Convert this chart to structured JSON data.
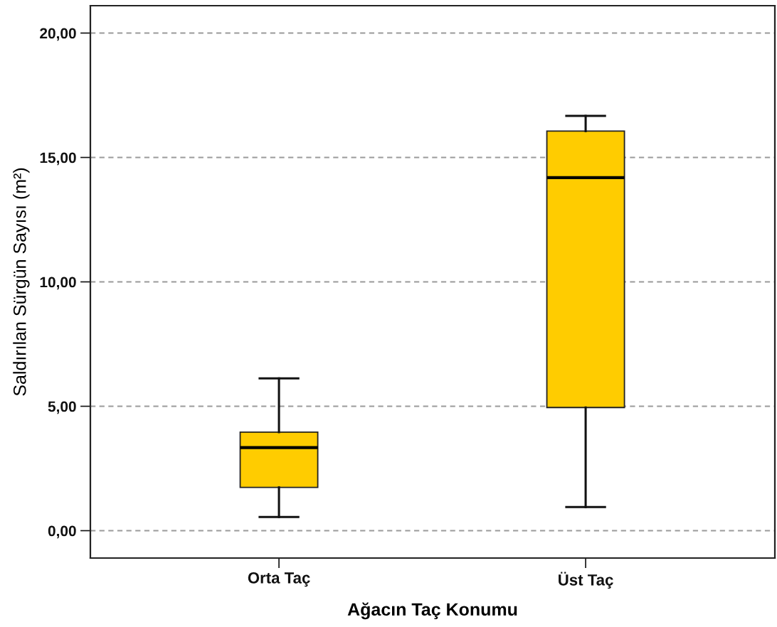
{
  "chart_data": {
    "type": "box",
    "xlabel": "Ağacın Taç Konumu",
    "ylabel": "Saldırılan Sürgün Sayısı (m²)",
    "categories": [
      "Orta Taç",
      "Üst Taç"
    ],
    "series": [
      {
        "color": "#ffcc00",
        "boxes": [
          {
            "low": 0.55,
            "q1": 1.74,
            "median": 3.34,
            "q3": 3.96,
            "high": 6.12
          },
          {
            "low": 0.95,
            "q1": 4.95,
            "median": 14.19,
            "q3": 16.06,
            "high": 16.67
          }
        ]
      }
    ],
    "ylim": [
      -1.1,
      21.1
    ],
    "yticks": [
      {
        "value": 0,
        "label": "0,00"
      },
      {
        "value": 5,
        "label": "5,00"
      },
      {
        "value": 10,
        "label": "10,00"
      },
      {
        "value": 15,
        "label": "15,00"
      },
      {
        "value": 20,
        "label": "20,00"
      }
    ],
    "grid": "y",
    "legend": false
  }
}
